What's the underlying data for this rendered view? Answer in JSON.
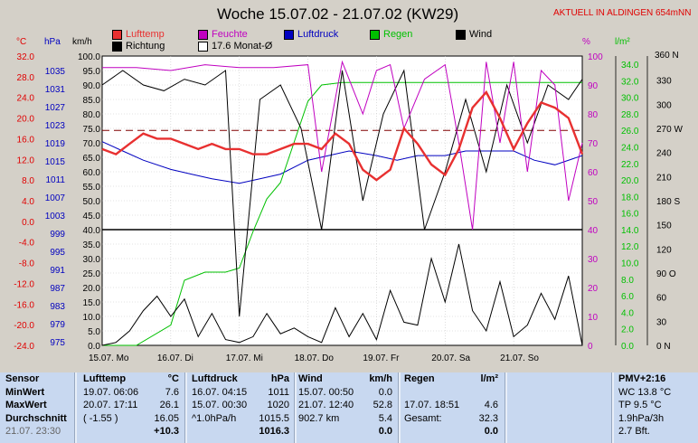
{
  "title": "Woche 15.07.02 - 21.07.02 (KW29)",
  "location": "AKTUELL IN ALDINGEN 654mNN",
  "legend": [
    {
      "name": "luft",
      "label": "Lufttemp",
      "color": "#e83030"
    },
    {
      "name": "feuchte",
      "label": "Feuchte",
      "color": "#c000c0"
    },
    {
      "name": "luftdruck",
      "label": "Luftdruck",
      "color": "#0000c0"
    },
    {
      "name": "regen",
      "label": "Regen",
      "color": "#00c000"
    },
    {
      "name": "wind",
      "label": "Wind",
      "color": "#000000"
    },
    {
      "name": "richtung",
      "label": "Richtung",
      "color": "#000000"
    },
    {
      "name": "monat",
      "label": "17.6 Monat-Ø",
      "color": "#ffffff"
    }
  ],
  "chart_data": {
    "type": "line",
    "axis_headers": {
      "temp": "°C",
      "hpa": "hPa",
      "kmh": "km/h",
      "pct": "%",
      "rain": "l/m²",
      "dir": "360 N"
    },
    "temp_ticks": [
      "32.0",
      "28.0",
      "24.0",
      "20.0",
      "16.0",
      "12.0",
      "8.0",
      "4.0",
      "0.0",
      "-4.0",
      "-8.0",
      "-12.0",
      "-16.0",
      "-20.0",
      "-24.0"
    ],
    "hpa_ticks": [
      "1035",
      "1031",
      "1027",
      "1023",
      "1019",
      "1015",
      "1011",
      "1007",
      "1003",
      "999",
      "995",
      "991",
      "987",
      "983",
      "979",
      "975"
    ],
    "kmh_ticks": [
      "100.0",
      "95.0",
      "90.0",
      "85.0",
      "80.0",
      "75.0",
      "70.0",
      "65.0",
      "60.0",
      "55.0",
      "50.0",
      "45.0",
      "40.0",
      "35.0",
      "30.0",
      "25.0",
      "20.0",
      "15.0",
      "10.0",
      "5.0",
      "0.0"
    ],
    "pct_ticks": [
      "100",
      "90",
      "80",
      "70",
      "60",
      "50",
      "40",
      "30",
      "20",
      "10",
      "0"
    ],
    "rain_ticks": [
      "34.0",
      "32.0",
      "30.0",
      "28.0",
      "26.0",
      "24.0",
      "22.0",
      "20.0",
      "18.0",
      "16.0",
      "14.0",
      "12.0",
      "10.0",
      "8.0",
      "6.0",
      "4.0",
      "2.0",
      "0.0"
    ],
    "dir_ticks": [
      "",
      "330",
      "300",
      "270 W",
      "240",
      "210",
      "180 S",
      "150",
      "120",
      "90 O",
      "60",
      "30",
      "0   N"
    ],
    "x_labels": [
      "15.07.  Mo",
      "16.07.  Di",
      "17.07.  Mi",
      "18.07.  Do",
      "19.07.  Fr",
      "20.07.  Sa",
      "21.07.  So"
    ],
    "x_range": [
      0,
      7
    ],
    "temp_range": [
      -24,
      32
    ],
    "pct_range": [
      0,
      100
    ],
    "series": [
      {
        "name": "Lufttemp",
        "axis": "temp",
        "color": "#e83030",
        "x": [
          0,
          0.2,
          0.4,
          0.6,
          0.8,
          1,
          1.2,
          1.4,
          1.6,
          1.8,
          2,
          2.2,
          2.4,
          2.6,
          2.8,
          3,
          3.2,
          3.4,
          3.6,
          3.8,
          4,
          4.2,
          4.4,
          4.6,
          4.8,
          5,
          5.2,
          5.4,
          5.6,
          5.8,
          6,
          6.2,
          6.4,
          6.6,
          6.8,
          7
        ],
        "y": [
          14,
          13,
          15,
          17,
          16,
          16,
          15,
          14,
          15,
          14,
          14,
          13,
          13,
          14,
          15,
          15,
          14,
          17,
          15,
          10,
          8,
          10,
          18,
          15,
          11,
          9,
          14,
          22,
          25,
          20,
          14,
          19,
          23,
          22,
          20,
          13
        ]
      },
      {
        "name": "Feuchte",
        "axis": "pct",
        "color": "#c000c0",
        "x": [
          0,
          0.5,
          1,
          1.5,
          2,
          2.5,
          3,
          3.2,
          3.5,
          3.8,
          4,
          4.2,
          4.4,
          4.7,
          5,
          5.2,
          5.4,
          5.6,
          5.8,
          6,
          6.2,
          6.4,
          6.6,
          6.8,
          7
        ],
        "y": [
          96,
          96,
          95,
          97,
          96,
          96,
          97,
          60,
          98,
          80,
          95,
          97,
          75,
          92,
          97,
          70,
          40,
          98,
          70,
          98,
          60,
          95,
          90,
          50,
          70
        ]
      },
      {
        "name": "Luftdruck",
        "axis": "hpa",
        "color": "#0000c0",
        "x": [
          0,
          0.3,
          0.6,
          1,
          1.3,
          1.6,
          2,
          2.3,
          2.6,
          3,
          3.3,
          3.6,
          4,
          4.3,
          4.6,
          5,
          5.3,
          5.6,
          6,
          6.3,
          6.6,
          7
        ],
        "y": [
          1019,
          1017,
          1015,
          1013,
          1012,
          1011,
          1010,
          1011,
          1012,
          1015,
          1016,
          1017,
          1016,
          1015,
          1016,
          1016,
          1017,
          1017,
          1017,
          1015,
          1014,
          1016
        ]
      },
      {
        "name": "Regen",
        "axis": "rain",
        "color": "#00c000",
        "x": [
          0,
          0.5,
          1,
          1.2,
          1.5,
          1.8,
          2,
          2.2,
          2.4,
          2.6,
          2.8,
          3,
          3.2,
          3.5,
          4,
          5,
          6,
          7
        ],
        "y": [
          0,
          0,
          2.5,
          8,
          9,
          9,
          9.5,
          14,
          18,
          20,
          25,
          30,
          32,
          32.3,
          32.3,
          32.3,
          32.3,
          32.3
        ]
      },
      {
        "name": "Wind",
        "axis": "kmh",
        "color": "#000000",
        "x": [
          0,
          0.2,
          0.4,
          0.6,
          0.8,
          1,
          1.2,
          1.4,
          1.6,
          1.8,
          2,
          2.2,
          2.4,
          2.6,
          2.8,
          3,
          3.2,
          3.4,
          3.6,
          3.8,
          4,
          4.2,
          4.4,
          4.6,
          4.8,
          5,
          5.2,
          5.4,
          5.6,
          5.8,
          6,
          6.2,
          6.4,
          6.6,
          6.8,
          7
        ],
        "y": [
          0,
          1,
          5,
          12,
          17,
          10,
          16,
          3,
          11,
          2,
          1,
          3,
          11,
          4,
          6,
          3,
          1,
          13,
          3,
          11,
          2,
          19,
          8,
          7,
          30,
          15,
          35,
          12,
          5,
          22,
          3,
          7,
          18,
          9,
          24,
          0
        ]
      },
      {
        "name": "Richtung",
        "axis": "pct",
        "color": "#000000",
        "x": [
          0,
          0.3,
          0.6,
          0.9,
          1.2,
          1.5,
          1.8,
          2,
          2.3,
          2.6,
          2.9,
          3.2,
          3.5,
          3.8,
          4.1,
          4.4,
          4.7,
          5,
          5.3,
          5.6,
          5.9,
          6.2,
          6.5,
          6.8,
          7
        ],
        "y": [
          90,
          95,
          90,
          88,
          92,
          90,
          95,
          10,
          85,
          90,
          75,
          40,
          95,
          50,
          80,
          95,
          40,
          60,
          85,
          60,
          90,
          70,
          90,
          85,
          92
        ]
      }
    ],
    "hlines": [
      {
        "label": "17.6 Monat-Ø",
        "value": 17.6,
        "axis": "temp",
        "style": "dashed"
      },
      {
        "value": 40,
        "axis": "kmh",
        "style": "solid"
      }
    ]
  },
  "footer": {
    "sensor": {
      "header": "Sensor",
      "rows": [
        "MinWert",
        "MaxWert",
        "Durchschnitt",
        "21.07. 23:30"
      ]
    },
    "luft": {
      "header": "Lufttemp",
      "unit": "°C",
      "rows": [
        [
          "19.07.  06:06",
          "7.6"
        ],
        [
          "20.07.  17:11",
          "26.1"
        ],
        [
          "( -1.55 )",
          "16.05"
        ],
        [
          "",
          "+10.3"
        ]
      ]
    },
    "druck": {
      "header": "Luftdruck",
      "unit": "hPa",
      "rows": [
        [
          "16.07.  04:15",
          "1011"
        ],
        [
          "15.07.  00:30",
          "1020"
        ],
        [
          "^1.0hPa/h",
          "1015.5"
        ],
        [
          "",
          "1016.3"
        ]
      ]
    },
    "wind": {
      "header": "Wind",
      "unit": "km/h",
      "rows": [
        [
          "15.07.  00:50",
          "0.0"
        ],
        [
          "21.07.  12:40",
          "52.8"
        ],
        [
          "902.7 km",
          "5.4"
        ],
        [
          "",
          "0.0"
        ]
      ]
    },
    "regen": {
      "header": "Regen",
      "unit": "l/m²",
      "rows": [
        [
          "",
          ""
        ],
        [
          "17.07.  18:51",
          "4.6"
        ],
        [
          "Gesamt:",
          "32.3"
        ],
        [
          "",
          "0.0"
        ]
      ]
    },
    "pmv": {
      "header": "PMV+2:16",
      "rows": [
        "WC 13.8 °C",
        "TP 9.5 °C",
        "1.9hPa/3h",
        "2.7 Bft."
      ]
    }
  }
}
